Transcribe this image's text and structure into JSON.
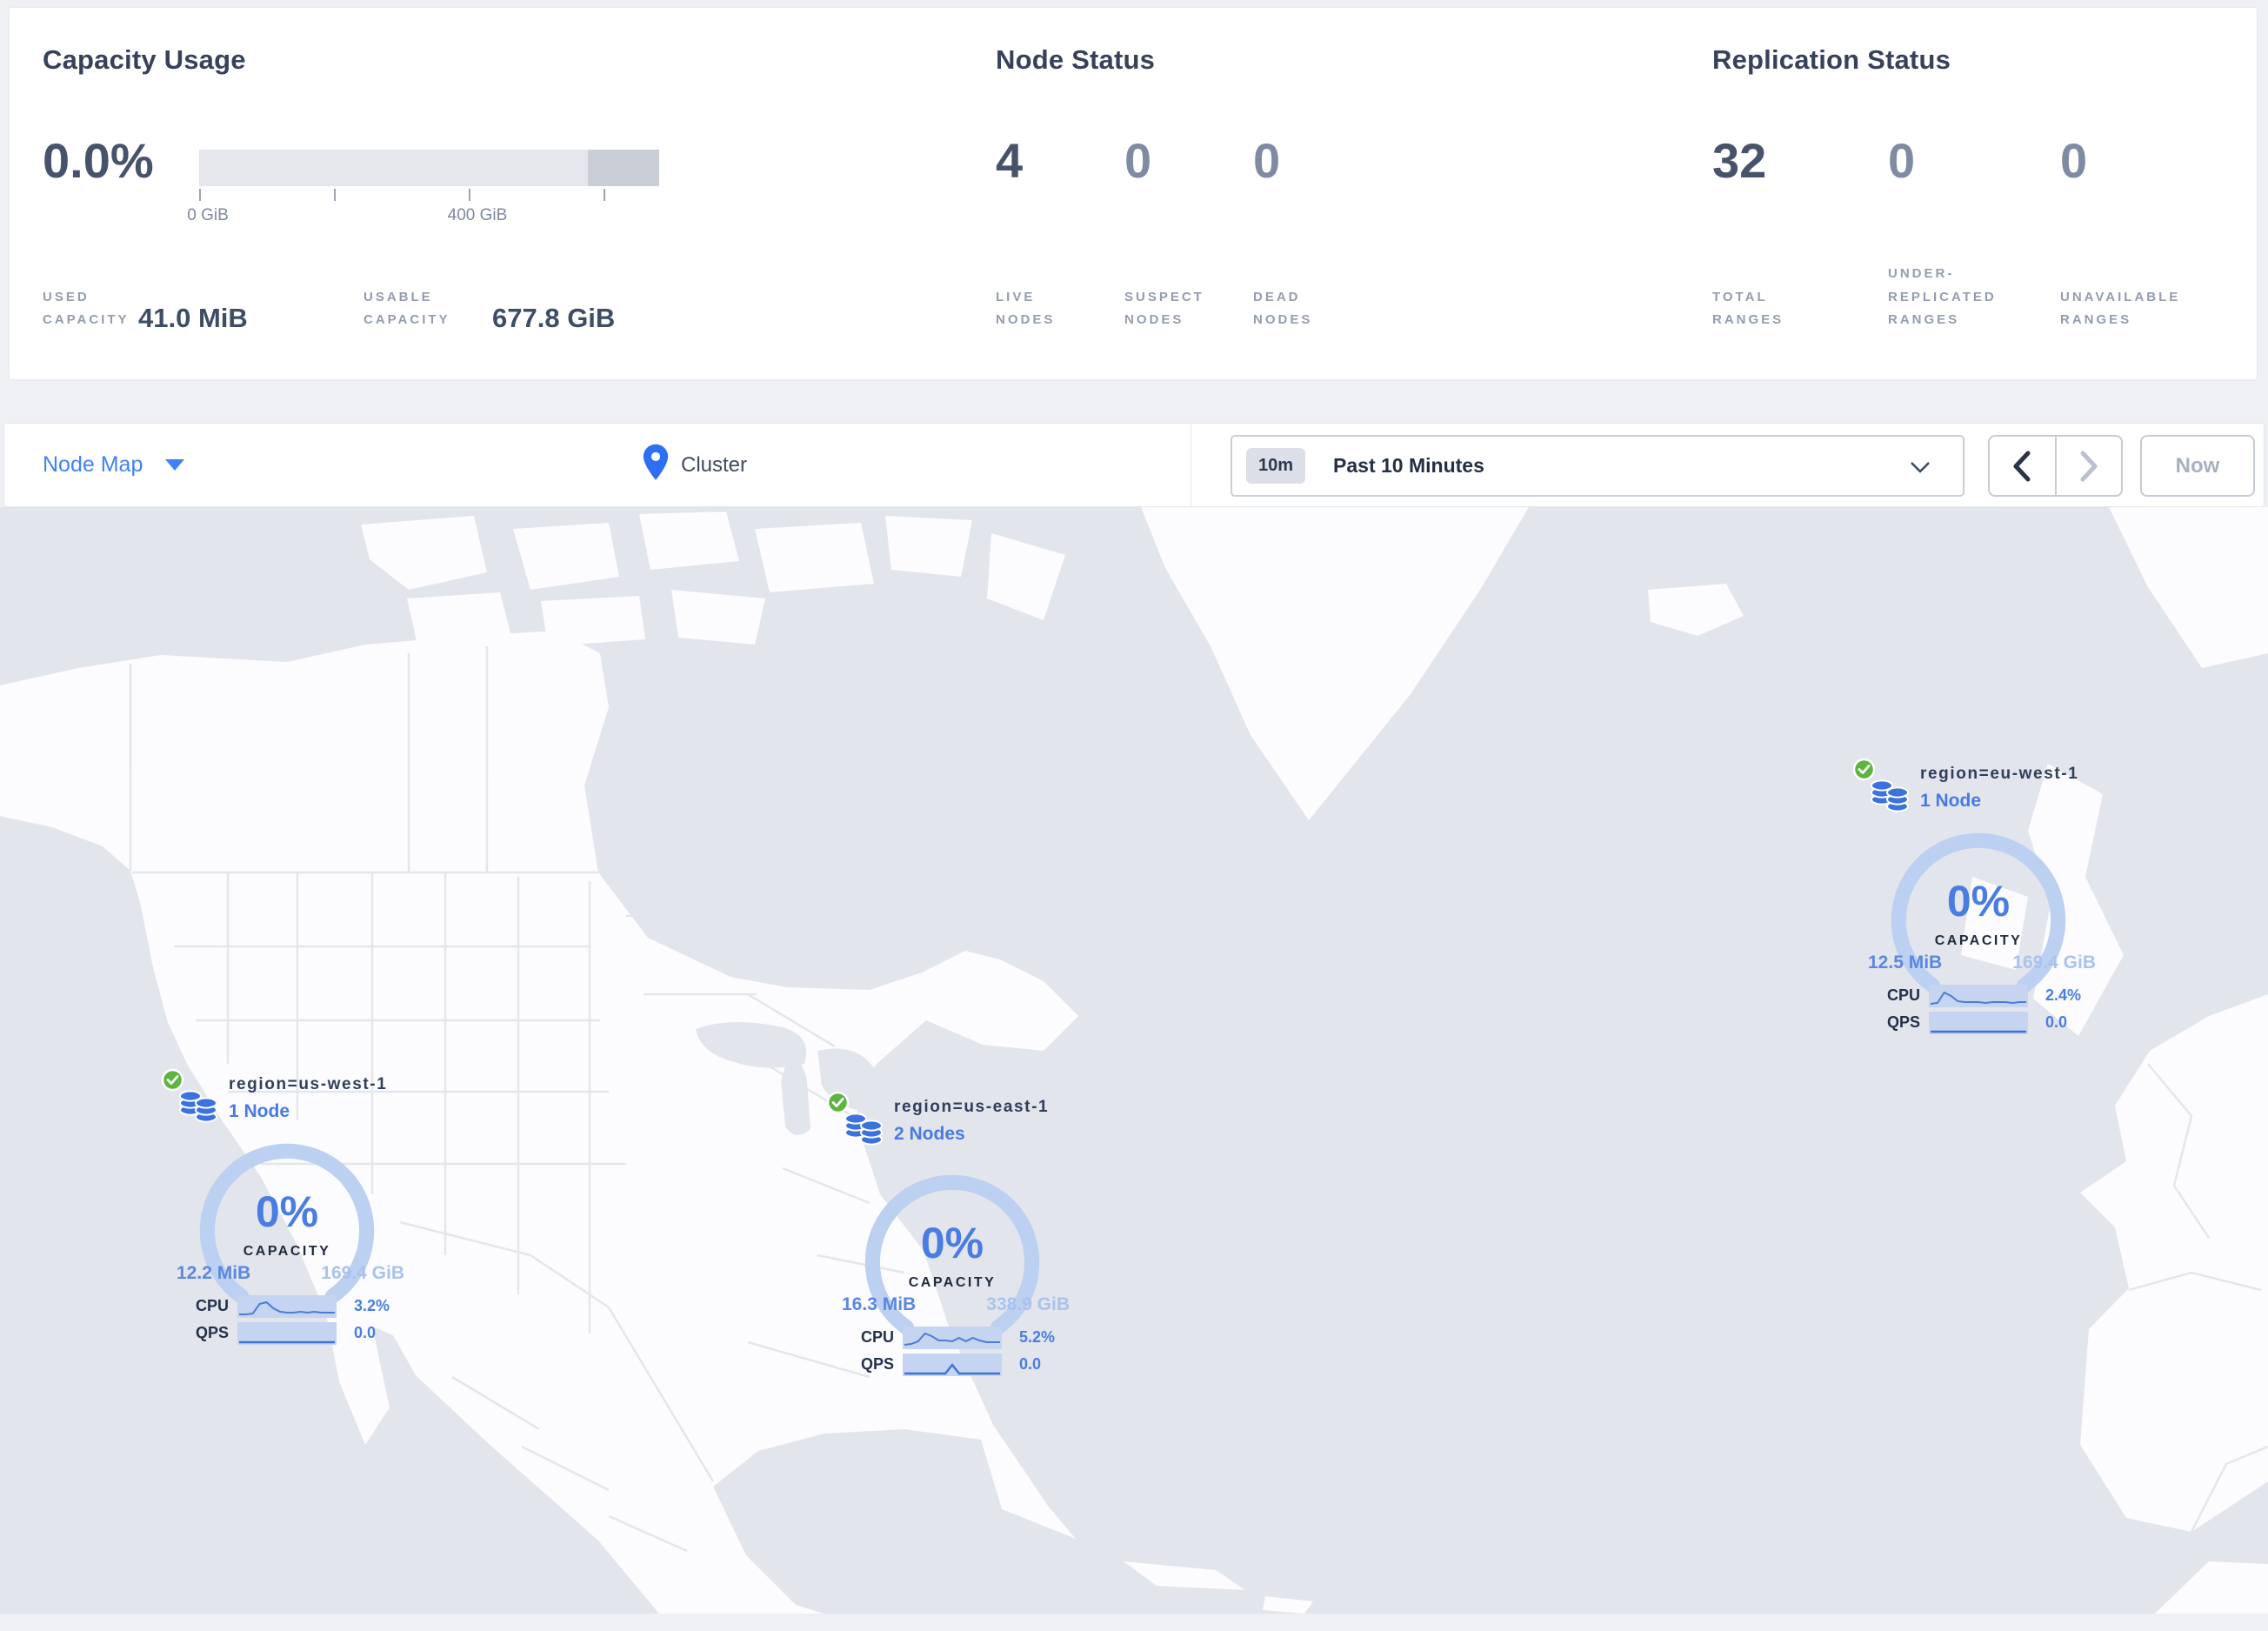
{
  "stats": {
    "capacity": {
      "title": "Capacity Usage",
      "percent": "0.0%",
      "tick_labels": [
        "0 GiB",
        "400 GiB"
      ],
      "used_label": "USED CAPACITY",
      "used_value": "41.0 MiB",
      "usable_label": "USABLE CAPACITY",
      "usable_value": "677.8 GiB"
    },
    "nodes": {
      "title": "Node Status",
      "live": {
        "value": "4",
        "label": "LIVE NODES"
      },
      "suspect": {
        "value": "0",
        "label": "SUSPECT NODES"
      },
      "dead": {
        "value": "0",
        "label": "DEAD NODES"
      }
    },
    "replication": {
      "title": "Replication Status",
      "total": {
        "value": "32",
        "label": "TOTAL RANGES"
      },
      "under": {
        "value": "0",
        "label": "UNDER-REPLICATED RANGES"
      },
      "unavailable": {
        "value": "0",
        "label": "UNAVAILABLE RANGES"
      }
    }
  },
  "toolbar": {
    "view_selector": "Node Map",
    "breadcrumb": "Cluster",
    "time_badge": "10m",
    "time_range": "Past 10 Minutes",
    "now_label": "Now"
  },
  "regions": [
    {
      "name": "region=us-west-1",
      "nodes": "1 Node",
      "capacity_pct": "0%",
      "capacity_label": "CAPACITY",
      "used": "12.2 MiB",
      "total": "169.4 GiB",
      "cpu_label": "CPU",
      "cpu_value": "3.2%",
      "qps_label": "QPS",
      "qps_value": "0.0",
      "cpu_spark": [
        2,
        2,
        3,
        14,
        16,
        9,
        5,
        4,
        4,
        5,
        4,
        5,
        4,
        4,
        4
      ],
      "qps_spark": [
        1,
        1,
        1,
        1,
        1,
        1,
        1,
        1,
        1,
        1,
        1,
        1,
        1,
        1,
        1
      ]
    },
    {
      "name": "region=us-east-1",
      "nodes": "2 Nodes",
      "capacity_pct": "0%",
      "capacity_label": "CAPACITY",
      "used": "16.3 MiB",
      "total": "338.9 GiB",
      "cpu_label": "CPU",
      "cpu_value": "5.2%",
      "qps_label": "QPS",
      "qps_value": "0.0",
      "cpu_spark": [
        3,
        4,
        7,
        16,
        13,
        8,
        8,
        7,
        11,
        7,
        11,
        8,
        6,
        6,
        6
      ],
      "qps_spark": [
        1,
        1,
        1,
        1,
        1,
        1,
        1,
        11,
        1,
        1,
        1,
        1,
        1,
        1,
        1
      ]
    },
    {
      "name": "region=eu-west-1",
      "nodes": "1 Node",
      "capacity_pct": "0%",
      "capacity_label": "CAPACITY",
      "used": "12.5 MiB",
      "total": "169.4 GiB",
      "cpu_label": "CPU",
      "cpu_value": "2.4%",
      "qps_label": "QPS",
      "qps_value": "0.0",
      "cpu_spark": [
        2,
        3,
        15,
        11,
        5,
        4,
        4,
        4,
        3,
        4,
        4,
        4,
        3,
        4,
        4
      ],
      "qps_spark": [
        1,
        1,
        1,
        1,
        1,
        1,
        1,
        1,
        1,
        1,
        1,
        1,
        1,
        1,
        1
      ]
    }
  ],
  "colors": {
    "accent_blue": "#3f82f7",
    "gauge_blue": "#4a7de2",
    "arc_blue": "#bcd0f2",
    "spark_band": "#c5d4f0",
    "spark_line": "#4a7cd9",
    "check_green": "#5cb53e",
    "db_icon_blue": "#3b72dd",
    "water_gray": "#e2e5ec",
    "land_white": "#fcfcfe"
  }
}
